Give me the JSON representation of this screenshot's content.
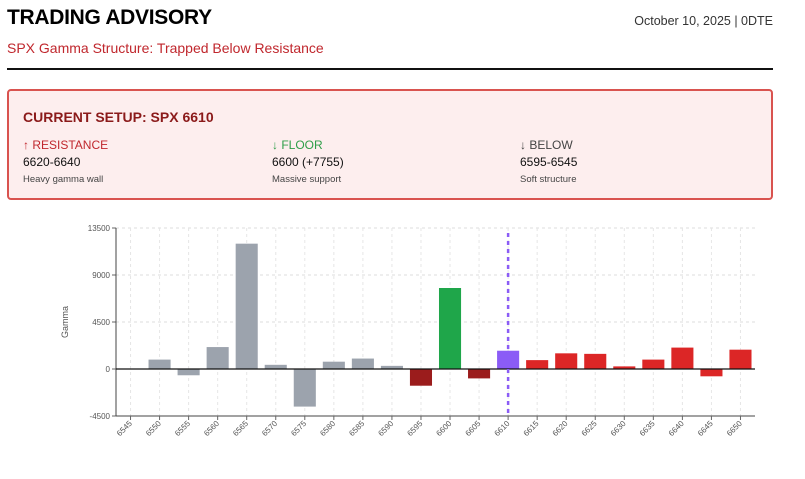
{
  "header": {
    "title": "TRADING ADVISORY",
    "subtitle": "SPX Gamma Structure: Trapped Below Resistance",
    "date": "October 10, 2025 | 0DTE"
  },
  "setup": {
    "title": "CURRENT SETUP: SPX 6610",
    "resistance": {
      "label": "↑ RESISTANCE",
      "value": "6620-6640",
      "note": "Heavy gamma wall"
    },
    "floor": {
      "label": "↓ FLOOR",
      "value": "6600 (+7755)",
      "note": "Massive support"
    },
    "below": {
      "label": "↓ BELOW",
      "value": "6595-6545",
      "note": "Soft structure"
    }
  },
  "colors": {
    "neutral": "#9ca3ad",
    "floor": "#1fa64a",
    "negative_near": "#9b1c1c",
    "positive_above": "#dc2626",
    "current": "#8b5cf6"
  },
  "chart_data": {
    "type": "bar",
    "ylabel": "Gamma",
    "ylim": [
      -4500,
      13500
    ],
    "yticks": [
      -4500,
      0,
      4500,
      9000,
      13500
    ],
    "grid": true,
    "current_price": "6610",
    "categories": [
      "6545",
      "6550",
      "6555",
      "6560",
      "6565",
      "6570",
      "6575",
      "6580",
      "6585",
      "6590",
      "6595",
      "6600",
      "6605",
      "6610",
      "6615",
      "6620",
      "6625",
      "6630",
      "6635",
      "6640",
      "6645",
      "6650"
    ],
    "values": [
      0,
      900,
      -600,
      2100,
      12000,
      400,
      -3600,
      700,
      1000,
      300,
      -1600,
      7755,
      -900,
      1750,
      850,
      1500,
      1450,
      250,
      900,
      2050,
      -700,
      1850
    ],
    "colors": [
      "neutral",
      "neutral",
      "neutral",
      "neutral",
      "neutral",
      "neutral",
      "neutral",
      "neutral",
      "neutral",
      "neutral",
      "negative_near",
      "floor",
      "negative_near",
      "current",
      "positive_above",
      "positive_above",
      "positive_above",
      "positive_above",
      "positive_above",
      "positive_above",
      "positive_above",
      "positive_above"
    ]
  }
}
